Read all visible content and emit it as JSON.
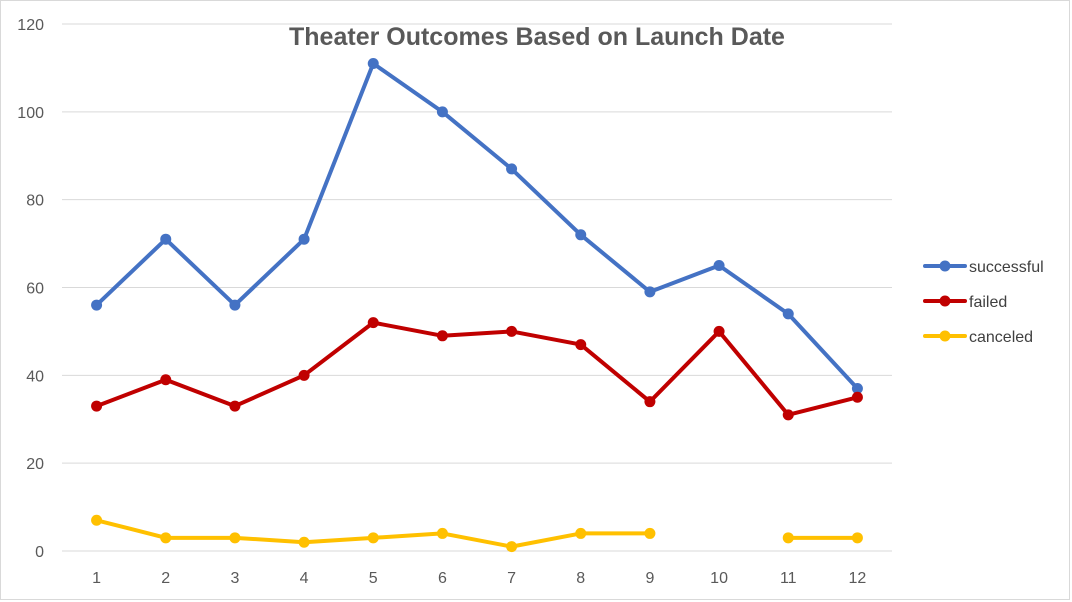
{
  "chart_data": {
    "type": "line",
    "title": "Theater Outcomes Based on Launch Date",
    "xlabel": "",
    "ylabel": "",
    "categories": [
      "1",
      "2",
      "3",
      "4",
      "5",
      "6",
      "7",
      "8",
      "9",
      "10",
      "11",
      "12"
    ],
    "y_ticks": [
      "0",
      "20",
      "40",
      "60",
      "80",
      "100",
      "120"
    ],
    "ylim": [
      0,
      120
    ],
    "grid": "horizontal",
    "legend_position": "right",
    "series": [
      {
        "name": "successful",
        "color": "#4472C4",
        "values": [
          56,
          71,
          56,
          71,
          111,
          100,
          87,
          72,
          59,
          65,
          54,
          37
        ]
      },
      {
        "name": "failed",
        "color": "#C00000",
        "values": [
          33,
          39,
          33,
          40,
          52,
          49,
          50,
          47,
          34,
          50,
          31,
          35
        ]
      },
      {
        "name": "canceled",
        "color": "#FFC000",
        "values": [
          7,
          3,
          3,
          2,
          3,
          4,
          1,
          4,
          4,
          null,
          3,
          3
        ]
      }
    ]
  }
}
